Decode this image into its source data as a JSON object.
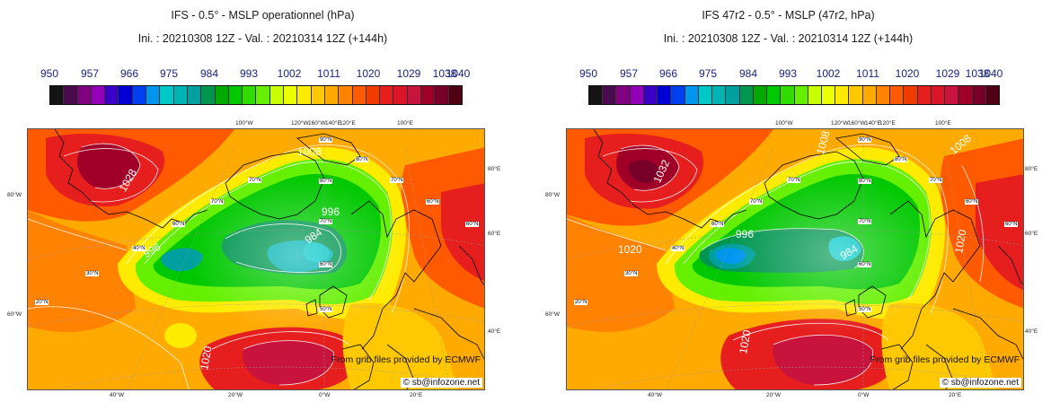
{
  "colorbar": {
    "labels": [
      "950",
      "957",
      "966",
      "975",
      "984",
      "993",
      "1002",
      "1011",
      "1020",
      "1029",
      "1038",
      "1040"
    ],
    "colors": [
      "#141414",
      "#4a0a4e",
      "#800080",
      "#9400b8",
      "#3c00c8",
      "#0000d2",
      "#0040f0",
      "#0096f0",
      "#00c8c8",
      "#00b4b4",
      "#00a0a0",
      "#009650",
      "#00aa00",
      "#00c800",
      "#32dc00",
      "#64f000",
      "#c8ff00",
      "#ebff00",
      "#ffeb00",
      "#ffc800",
      "#ffaa00",
      "#ff8200",
      "#ff5a00",
      "#f03c00",
      "#e61e1e",
      "#dc1428",
      "#c8143c",
      "#a00028",
      "#780028",
      "#500014"
    ]
  },
  "panels": {
    "left": {
      "title": "IFS - 0.5° - MSLP operationnel (hPa)",
      "subtitle": "Ini. : 20210308 12Z - Val. : 20210314 12Z (+144h)",
      "contour_labels": [
        "1028",
        "996",
        "1008",
        "996",
        "984",
        "1020"
      ],
      "lat_labels": [
        "90°N",
        "80°N",
        "80°N",
        "70°N",
        "70°N",
        "70°N",
        "70°N",
        "60°N",
        "60°N",
        "60°N",
        "60°N",
        "50°N",
        "50°N",
        "50°N",
        "40°N",
        "30°N",
        "20°N"
      ],
      "credit": "From grib files provided by ECMWF",
      "copyright": "© sb@infozone.net"
    },
    "right": {
      "title": "IFS 47r2 - 0.5° - MSLP (47r2, hPa)",
      "subtitle": "Ini. : 20210308 12Z - Val. : 20210314 12Z (+144h)",
      "contour_labels": [
        "1032",
        "1008",
        "1008",
        "996",
        "984",
        "1020",
        "1020",
        "1020"
      ],
      "lat_labels": [
        "90°N",
        "80°N",
        "80°N",
        "70°N",
        "70°N",
        "70°N",
        "70°N",
        "60°N",
        "60°N",
        "60°N",
        "60°N",
        "50°N",
        "50°N",
        "50°N",
        "40°N",
        "30°N",
        "20°N"
      ],
      "credit": "From grib files provided by ECMWF",
      "copyright": "© sb@infozone.net"
    }
  },
  "axes": {
    "top": [
      "100°W",
      "120°W",
      "160°W",
      "140°E",
      "120°E",
      "100°E"
    ],
    "bottom": [
      "40°W",
      "20°W",
      "0°W",
      "20°E"
    ],
    "left": [
      "80°W",
      "60°W"
    ],
    "right": [
      "80°E",
      "60°E",
      "40°E"
    ]
  }
}
